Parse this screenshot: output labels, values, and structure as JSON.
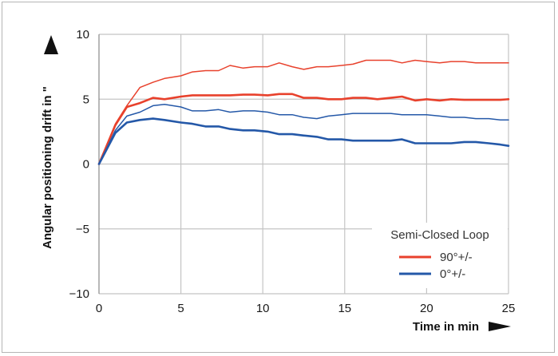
{
  "chart_data": {
    "type": "line",
    "title": "",
    "xlabel": "Time in min",
    "ylabel": "Angular positioning drift in \"",
    "xlim": [
      0,
      25
    ],
    "ylim": [
      -10,
      10
    ],
    "x_ticks": [
      0,
      5,
      10,
      15,
      20,
      25
    ],
    "x_tick_labels": [
      "0",
      "5",
      "10",
      "15",
      "20",
      "25"
    ],
    "y_ticks": [
      -10,
      -5,
      0,
      5,
      10
    ],
    "y_tick_labels": [
      "−10",
      "−5",
      "0",
      "5",
      "10"
    ],
    "grid": true,
    "legend": {
      "title": "Semi-Closed Loop",
      "placement": "bottom-right",
      "entries": [
        {
          "label": "90°+/-",
          "color": "#e8412c"
        },
        {
          "label": "0°+/-",
          "color": "#2458a8"
        }
      ]
    },
    "x": [
      0,
      1,
      1.7,
      2.5,
      3.3,
      4,
      5,
      5.7,
      6.5,
      7.3,
      8,
      8.8,
      9.5,
      10.3,
      11,
      11.8,
      12.5,
      13.3,
      14,
      14.8,
      15.5,
      16.3,
      17,
      17.8,
      18.5,
      19.3,
      20,
      20.8,
      21.5,
      22.3,
      23,
      23.8,
      24.5,
      25
    ],
    "series": [
      {
        "color": "#e8412c",
        "width": 1.5,
        "values": [
          0,
          3.1,
          4.5,
          5.9,
          6.3,
          6.6,
          6.8,
          7.1,
          7.2,
          7.2,
          7.6,
          7.4,
          7.5,
          7.5,
          7.8,
          7.5,
          7.3,
          7.5,
          7.5,
          7.6,
          7.7,
          8.0,
          8.0,
          8.0,
          7.8,
          8.0,
          7.9,
          7.8,
          7.9,
          7.9,
          7.8,
          7.8,
          7.8,
          7.8
        ]
      },
      {
        "color": "#e8412c",
        "width": 2.6,
        "values": [
          0,
          3.0,
          4.4,
          4.7,
          5.1,
          5.0,
          5.2,
          5.3,
          5.3,
          5.3,
          5.3,
          5.35,
          5.35,
          5.3,
          5.4,
          5.4,
          5.1,
          5.1,
          5.0,
          5.0,
          5.1,
          5.1,
          5.0,
          5.1,
          5.2,
          4.9,
          5.0,
          4.9,
          5.0,
          4.95,
          4.95,
          4.95,
          4.95,
          5.0
        ]
      },
      {
        "color": "#2458a8",
        "width": 1.5,
        "values": [
          0,
          2.6,
          3.7,
          4.0,
          4.5,
          4.6,
          4.4,
          4.1,
          4.1,
          4.2,
          4.0,
          4.1,
          4.1,
          4.0,
          3.8,
          3.8,
          3.6,
          3.5,
          3.7,
          3.8,
          3.9,
          3.9,
          3.9,
          3.9,
          3.8,
          3.8,
          3.8,
          3.7,
          3.6,
          3.6,
          3.5,
          3.5,
          3.4,
          3.4
        ]
      },
      {
        "color": "#2458a8",
        "width": 2.6,
        "values": [
          0,
          2.4,
          3.2,
          3.4,
          3.5,
          3.4,
          3.2,
          3.1,
          2.9,
          2.9,
          2.7,
          2.6,
          2.6,
          2.5,
          2.3,
          2.3,
          2.2,
          2.1,
          1.9,
          1.9,
          1.8,
          1.8,
          1.8,
          1.8,
          1.9,
          1.6,
          1.6,
          1.6,
          1.6,
          1.7,
          1.7,
          1.6,
          1.5,
          1.4
        ]
      }
    ]
  }
}
